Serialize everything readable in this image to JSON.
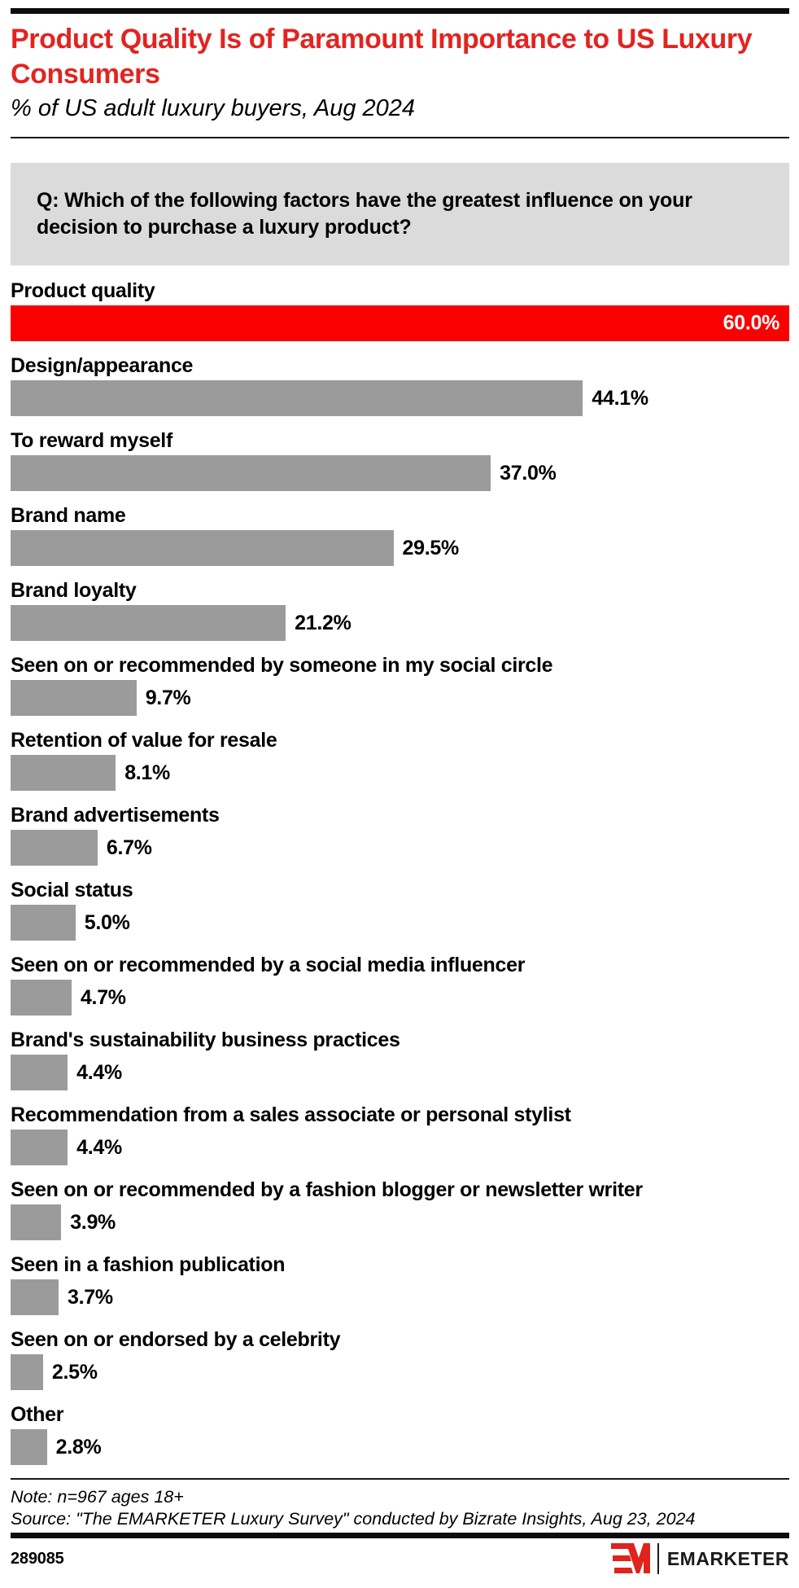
{
  "header": {
    "title": "Product Quality Is of Paramount Importance to US Luxury Consumers",
    "subtitle": "% of US adult luxury buyers, Aug 2024"
  },
  "question": "Q: Which of the following factors have the greatest influence on your decision to purchase a luxury product?",
  "chart_data": {
    "type": "bar",
    "orientation": "horizontal",
    "unit": "%",
    "axis_max": 60.0,
    "grid": false,
    "legend": false,
    "categories": [
      "Product quality",
      "Design/appearance",
      "To reward myself",
      "Brand name",
      "Brand loyalty",
      "Seen on or recommended by someone in my social circle",
      "Retention of value for resale",
      "Brand advertisements",
      "Social status",
      "Seen on or recommended by a social media influencer",
      "Brand's sustainability business practices",
      "Recommendation from a sales associate or personal stylist",
      "Seen on or recommended by a fashion blogger or newsletter writer",
      "Seen in a fashion publication",
      "Seen on or endorsed by a celebrity",
      "Other"
    ],
    "values": [
      60.0,
      44.1,
      37.0,
      29.5,
      21.2,
      9.7,
      8.1,
      6.7,
      5.0,
      4.7,
      4.4,
      4.4,
      3.9,
      3.7,
      2.5,
      2.8
    ],
    "value_labels": [
      "60.0%",
      "44.1%",
      "37.0%",
      "29.5%",
      "21.2%",
      "9.7%",
      "8.1%",
      "6.7%",
      "5.0%",
      "4.7%",
      "4.4%",
      "4.4%",
      "3.9%",
      "3.7%",
      "2.5%",
      "2.8%"
    ],
    "highlight_index": 0,
    "highlight_color": "#fa0000",
    "bar_color": "#9b9b9b"
  },
  "footer": {
    "note": "Note: n=967 ages 18+",
    "source": "Source: \"The EMARKETER Luxury Survey\" conducted by Bizrate Insights, Aug 23, 2024",
    "chart_id": "289085",
    "brand": "EMARKETER"
  },
  "colors": {
    "title_red": "#e22420",
    "bar_red": "#fa0000",
    "bar_gray": "#9b9b9b",
    "question_box_bg": "#dbdbdb"
  }
}
